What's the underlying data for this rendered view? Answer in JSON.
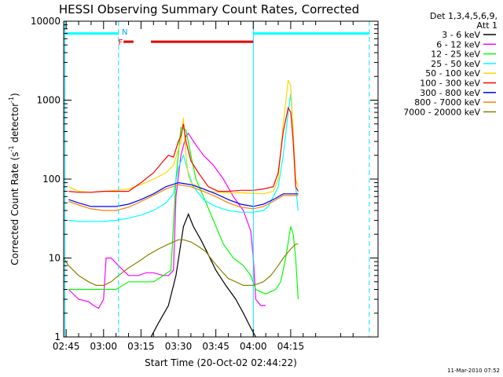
{
  "chart_data": {
    "type": "line",
    "title": "HESSI Observing Summary Count Rates, Corrected",
    "xlabel": "Start Time (20-Oct-02 02:44:22)",
    "ylabel_main": "Corrected Count Rate (s",
    "ylabel_sup1": "-1",
    "ylabel_mid": " detector",
    "ylabel_sup2": "-1",
    "ylabel_end": ")",
    "yscale": "log",
    "ylim": [
      1,
      10000
    ],
    "xlim": [
      164,
      290
    ],
    "y_ticks": [
      {
        "v": 1,
        "label": "1"
      },
      {
        "v": 10,
        "label": "10"
      },
      {
        "v": 100,
        "label": "100"
      },
      {
        "v": 1000,
        "label": "1000"
      },
      {
        "v": 10000,
        "label": "10000"
      }
    ],
    "x_ticks": [
      {
        "v": 165,
        "label": "02:45"
      },
      {
        "v": 180,
        "label": "03:00"
      },
      {
        "v": 195,
        "label": "03:15"
      },
      {
        "v": 210,
        "label": "03:30"
      },
      {
        "v": 225,
        "label": "03:45"
      },
      {
        "v": 240,
        "label": "04:00"
      },
      {
        "v": 255,
        "label": "04:15"
      }
    ],
    "legend_header": [
      "Det 1,3,4,5,6,9,",
      "Att 1"
    ],
    "footer": "11-Mar-2010 07:52",
    "series": [
      {
        "name": "3 - 6 keV",
        "color": "#000000",
        "points": [
          [
            199,
            1
          ],
          [
            202,
            1.5
          ],
          [
            206,
            2.5
          ],
          [
            209,
            6
          ],
          [
            212,
            25
          ],
          [
            214,
            36
          ],
          [
            216,
            25
          ],
          [
            219,
            17
          ],
          [
            222,
            11
          ],
          [
            225,
            7
          ],
          [
            229,
            4.5
          ],
          [
            233,
            3
          ],
          [
            236,
            2
          ],
          [
            239,
            1.3
          ],
          [
            241,
            1
          ]
        ]
      },
      {
        "name": "6 - 12 keV",
        "color": "#ff00ff",
        "points": [
          [
            166,
            4
          ],
          [
            170,
            3
          ],
          [
            174,
            2.8
          ],
          [
            176,
            2.5
          ],
          [
            178,
            2.3
          ],
          [
            180,
            3
          ],
          [
            181,
            10
          ],
          [
            183,
            10
          ],
          [
            186,
            8
          ],
          [
            190,
            6
          ],
          [
            194,
            6
          ],
          [
            197,
            6.5
          ],
          [
            200,
            6.5
          ],
          [
            204,
            6
          ],
          [
            206,
            6
          ],
          [
            208,
            7
          ],
          [
            209,
            60
          ],
          [
            211,
            200
          ],
          [
            213,
            350
          ],
          [
            214,
            380
          ],
          [
            216,
            300
          ],
          [
            220,
            200
          ],
          [
            224,
            150
          ],
          [
            228,
            100
          ],
          [
            232,
            60
          ],
          [
            236,
            40
          ],
          [
            239,
            22
          ],
          [
            240,
            10
          ],
          [
            241,
            3
          ],
          [
            243,
            2.5
          ],
          [
            245,
            2.5
          ]
        ]
      },
      {
        "name": "12 - 25 keV",
        "color": "#00ff00",
        "points": [
          [
            166,
            4
          ],
          [
            170,
            4
          ],
          [
            175,
            4
          ],
          [
            180,
            4
          ],
          [
            185,
            4
          ],
          [
            190,
            5
          ],
          [
            195,
            5
          ],
          [
            200,
            5
          ],
          [
            204,
            6
          ],
          [
            207,
            7
          ],
          [
            209,
            100
          ],
          [
            211,
            450
          ],
          [
            213,
            420
          ],
          [
            215,
            200
          ],
          [
            217,
            100
          ],
          [
            220,
            60
          ],
          [
            224,
            30
          ],
          [
            228,
            15
          ],
          [
            232,
            10
          ],
          [
            236,
            8
          ],
          [
            239,
            6
          ],
          [
            241,
            4
          ],
          [
            245,
            3.5
          ],
          [
            249,
            4
          ],
          [
            251,
            5
          ],
          [
            253,
            10
          ],
          [
            255,
            25
          ],
          [
            256,
            20
          ],
          [
            257,
            10
          ],
          [
            258,
            3
          ]
        ]
      },
      {
        "name": "25 - 50 keV",
        "color": "#00ffff",
        "points": [
          [
            166,
            30
          ],
          [
            170,
            29
          ],
          [
            175,
            29
          ],
          [
            180,
            29
          ],
          [
            185,
            30
          ],
          [
            190,
            32
          ],
          [
            195,
            35
          ],
          [
            200,
            40
          ],
          [
            205,
            50
          ],
          [
            208,
            65
          ],
          [
            210,
            140
          ],
          [
            212,
            200
          ],
          [
            214,
            120
          ],
          [
            216,
            80
          ],
          [
            220,
            55
          ],
          [
            225,
            45
          ],
          [
            230,
            40
          ],
          [
            235,
            38
          ],
          [
            240,
            38
          ],
          [
            244,
            40
          ],
          [
            246,
            45
          ],
          [
            248,
            60
          ],
          [
            250,
            80
          ],
          [
            252,
            200
          ],
          [
            254,
            700
          ],
          [
            255,
            1200
          ],
          [
            256,
            400
          ],
          [
            257,
            80
          ],
          [
            258,
            40
          ]
        ]
      },
      {
        "name": "50 - 100 keV",
        "color": "#ffd700",
        "points": [
          [
            166,
            80
          ],
          [
            170,
            70
          ],
          [
            175,
            68
          ],
          [
            180,
            70
          ],
          [
            185,
            72
          ],
          [
            190,
            75
          ],
          [
            195,
            85
          ],
          [
            200,
            100
          ],
          [
            205,
            120
          ],
          [
            208,
            150
          ],
          [
            211,
            300
          ],
          [
            212,
            600
          ],
          [
            213,
            200
          ],
          [
            214,
            110
          ],
          [
            215,
            90
          ],
          [
            218,
            80
          ],
          [
            222,
            70
          ],
          [
            226,
            68
          ],
          [
            230,
            67
          ],
          [
            235,
            67
          ],
          [
            240,
            66
          ],
          [
            244,
            65
          ],
          [
            248,
            70
          ],
          [
            250,
            100
          ],
          [
            252,
            500
          ],
          [
            254,
            1800
          ],
          [
            255,
            1500
          ],
          [
            256,
            400
          ],
          [
            257,
            100
          ],
          [
            258,
            80
          ]
        ]
      },
      {
        "name": "100 - 300 keV",
        "color": "#ff0000",
        "points": [
          [
            166,
            70
          ],
          [
            170,
            68
          ],
          [
            175,
            68
          ],
          [
            180,
            70
          ],
          [
            185,
            70
          ],
          [
            190,
            70
          ],
          [
            195,
            90
          ],
          [
            200,
            120
          ],
          [
            204,
            170
          ],
          [
            206,
            200
          ],
          [
            208,
            190
          ],
          [
            210,
            300
          ],
          [
            211,
            350
          ],
          [
            212,
            500
          ],
          [
            213,
            300
          ],
          [
            215,
            170
          ],
          [
            218,
            120
          ],
          [
            222,
            80
          ],
          [
            226,
            70
          ],
          [
            230,
            70
          ],
          [
            235,
            72
          ],
          [
            240,
            72
          ],
          [
            244,
            75
          ],
          [
            248,
            80
          ],
          [
            250,
            120
          ],
          [
            252,
            400
          ],
          [
            254,
            800
          ],
          [
            255,
            700
          ],
          [
            256,
            300
          ],
          [
            257,
            80
          ],
          [
            258,
            70
          ]
        ]
      },
      {
        "name": "300 - 800 keV",
        "color": "#0000ff",
        "points": [
          [
            166,
            55
          ],
          [
            170,
            50
          ],
          [
            175,
            45
          ],
          [
            180,
            45
          ],
          [
            185,
            45
          ],
          [
            190,
            48
          ],
          [
            195,
            55
          ],
          [
            200,
            65
          ],
          [
            205,
            80
          ],
          [
            210,
            90
          ],
          [
            215,
            85
          ],
          [
            220,
            75
          ],
          [
            225,
            65
          ],
          [
            230,
            55
          ],
          [
            235,
            48
          ],
          [
            240,
            45
          ],
          [
            244,
            48
          ],
          [
            248,
            55
          ],
          [
            252,
            65
          ],
          [
            256,
            65
          ],
          [
            258,
            65
          ]
        ]
      },
      {
        "name": "800 - 7000 keV",
        "color": "#ff8000",
        "points": [
          [
            166,
            52
          ],
          [
            170,
            47
          ],
          [
            175,
            42
          ],
          [
            180,
            40
          ],
          [
            185,
            40
          ],
          [
            190,
            44
          ],
          [
            195,
            52
          ],
          [
            200,
            62
          ],
          [
            205,
            75
          ],
          [
            210,
            85
          ],
          [
            215,
            80
          ],
          [
            220,
            70
          ],
          [
            225,
            60
          ],
          [
            230,
            50
          ],
          [
            235,
            44
          ],
          [
            240,
            42
          ],
          [
            244,
            45
          ],
          [
            248,
            52
          ],
          [
            252,
            62
          ],
          [
            256,
            62
          ],
          [
            258,
            62
          ]
        ]
      },
      {
        "name": "7000 - 20000 keV",
        "color": "#8b8000",
        "points": [
          [
            164,
            10
          ],
          [
            166,
            8
          ],
          [
            170,
            6
          ],
          [
            174,
            5
          ],
          [
            177,
            4.5
          ],
          [
            180,
            4.5
          ],
          [
            183,
            5
          ],
          [
            186,
            6
          ],
          [
            190,
            7.5
          ],
          [
            194,
            9
          ],
          [
            198,
            11
          ],
          [
            202,
            13
          ],
          [
            206,
            15
          ],
          [
            210,
            17
          ],
          [
            212,
            17
          ],
          [
            215,
            16
          ],
          [
            218,
            14
          ],
          [
            221,
            12
          ],
          [
            224,
            9
          ],
          [
            227,
            7
          ],
          [
            230,
            5.5
          ],
          [
            233,
            5
          ],
          [
            236,
            4.5
          ],
          [
            240,
            4.5
          ],
          [
            244,
            5
          ],
          [
            247,
            6
          ],
          [
            250,
            8
          ],
          [
            252,
            10
          ],
          [
            255,
            13
          ],
          [
            257,
            15
          ],
          [
            258,
            15
          ]
        ]
      }
    ],
    "markers": {
      "vlines_solid": [
        164.5,
        240
      ],
      "vlines_dashed": [
        186,
        286.5
      ],
      "bars": [
        {
          "x0": 164.5,
          "x1": 186,
          "y": 7000,
          "color": "#00ffff"
        },
        {
          "x0": 199,
          "x1": 240,
          "y": 5500,
          "color": "#e00000"
        },
        {
          "x0": 188,
          "x1": 192,
          "y": 5500,
          "color": "#e00000"
        },
        {
          "x0": 240,
          "x1": 286.5,
          "y": 7000,
          "color": "#00ffff"
        }
      ],
      "flags": [
        {
          "x": 186.8,
          "y": 5500,
          "label": "F",
          "color": "#e00000"
        },
        {
          "x": 188.5,
          "y": 7400,
          "label": "N",
          "color": "#00a0ff"
        }
      ]
    }
  }
}
